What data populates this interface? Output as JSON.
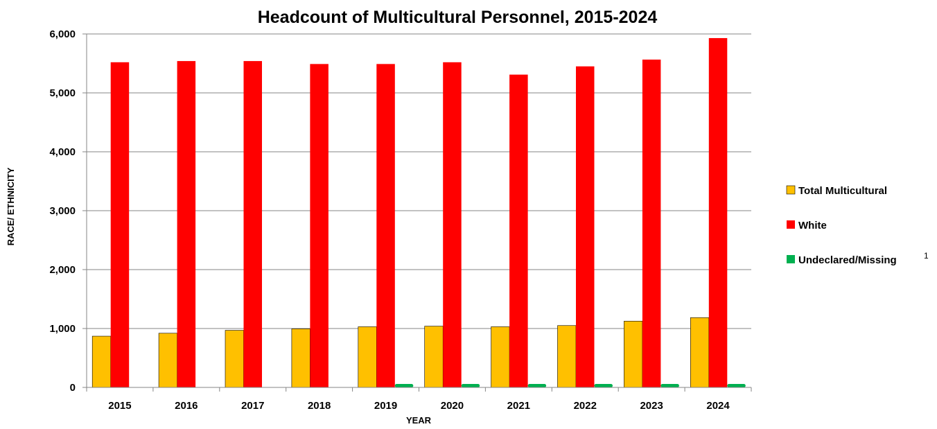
{
  "chart_data": {
    "type": "bar",
    "title": "Headcount of Multicultural Personnel, 2015-2024",
    "xlabel": "YEAR",
    "ylabel": "RACE/ ETHNICITY",
    "ylim": [
      0,
      6000
    ],
    "yticks": [
      0,
      1000,
      2000,
      3000,
      4000,
      5000,
      6000
    ],
    "ytick_labels": [
      "0",
      "1,000",
      "2,000",
      "3,000",
      "4,000",
      "5,000",
      "6,000"
    ],
    "grid": true,
    "legend_position": "right",
    "categories": [
      "2015",
      "2016",
      "2017",
      "2018",
      "2019",
      "2020",
      "2021",
      "2022",
      "2023",
      "2024"
    ],
    "series": [
      {
        "name": "Total Multicultural",
        "color": "#FFC000",
        "values": [
          870,
          920,
          970,
          995,
          1030,
          1040,
          1030,
          1050,
          1125,
          1185
        ]
      },
      {
        "name": "White",
        "color": "#FF0000",
        "values": [
          5520,
          5540,
          5540,
          5490,
          5490,
          5520,
          5310,
          5450,
          5565,
          5930
        ]
      },
      {
        "name": "Undeclared/Missing",
        "color": "#00B050",
        "values": [
          0,
          0,
          0,
          0,
          30,
          30,
          15,
          20,
          10,
          35
        ]
      }
    ],
    "legend_footnote": "1"
  }
}
